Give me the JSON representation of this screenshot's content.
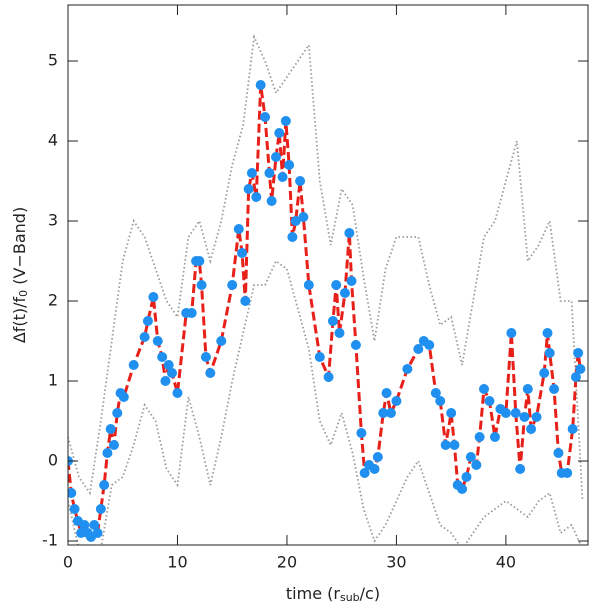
{
  "chart_data": {
    "type": "line",
    "xlabel": {
      "text": "time (r",
      "sub": "sub",
      "tail": "/c)"
    },
    "ylabel": {
      "text": "Δf(t)/f",
      "sub": "0",
      "tail": " (V−Band)"
    },
    "xlim": [
      0,
      47.5
    ],
    "ylim": [
      -1.05,
      5.7
    ],
    "xticks": [
      0,
      10,
      20,
      30,
      40
    ],
    "yticks": [
      -1,
      0,
      1,
      2,
      3,
      4,
      5
    ],
    "grey_x": [
      0,
      1,
      2,
      3,
      4,
      5,
      6,
      7,
      8,
      9,
      10,
      11,
      12,
      13,
      14,
      15,
      16,
      17,
      18,
      19,
      20,
      21,
      22,
      23,
      24,
      25,
      26,
      27,
      28,
      29,
      30,
      31,
      32,
      33,
      34,
      35,
      36,
      37,
      38,
      39,
      40,
      41,
      42,
      43,
      44,
      45,
      46,
      47
    ],
    "grey_color": "#999999",
    "grey_series": [
      [
        0.3,
        -0.2,
        -0.4,
        0.5,
        1.5,
        2.5,
        3.0,
        2.8,
        2.4,
        2.0,
        1.8,
        2.8,
        3.0,
        2.5,
        3.0,
        3.7,
        4.2,
        5.3,
        5.0,
        4.6,
        4.8,
        5.0,
        5.2,
        3.5,
        2.7,
        3.4,
        3.2,
        2.3,
        1.5,
        2.4,
        2.8,
        2.8,
        2.8,
        2.2,
        1.7,
        1.8,
        1.2,
        2.0,
        2.8,
        3.0,
        3.5,
        4.0,
        2.5,
        2.7,
        3.0,
        2.0,
        2.0,
        -0.5
      ],
      [
        -0.5,
        -1.1,
        -1.1,
        -1.1,
        -0.3,
        -0.2,
        0.2,
        0.7,
        0.5,
        -0.1,
        -0.3,
        0.8,
        0.3,
        -0.3,
        0.3,
        1.0,
        1.6,
        2.2,
        2.2,
        2.5,
        2.4,
        1.9,
        1.4,
        0.5,
        0.2,
        0.6,
        0.1,
        -0.6,
        -1.0,
        -0.8,
        -0.5,
        -0.2,
        0.0,
        -0.4,
        -0.8,
        -0.9,
        -1.1,
        -0.9,
        -0.7,
        -0.6,
        -0.5,
        -0.6,
        -0.7,
        -0.5,
        -0.4,
        -0.9,
        -0.8,
        -1.1
      ]
    ],
    "line_color": "#e8201a",
    "point_color": "#1f8ff0",
    "x": [
      0,
      0.3,
      0.6,
      0.9,
      1.2,
      1.5,
      1.8,
      2.1,
      2.4,
      2.7,
      3.0,
      3.3,
      3.6,
      3.9,
      4.2,
      4.5,
      4.8,
      5.1,
      6,
      7,
      7.3,
      7.8,
      8.2,
      8.6,
      8.9,
      9.2,
      9.5,
      10,
      10.8,
      11.3,
      11.7,
      12,
      12.2,
      12.6,
      13,
      14,
      15,
      15.6,
      15.9,
      16.2,
      16.5,
      16.8,
      17.2,
      17.6,
      18,
      18.4,
      18.6,
      19,
      19.3,
      19.6,
      19.9,
      20.2,
      20.5,
      20.8,
      21.2,
      21.5,
      22,
      23,
      23.8,
      24.2,
      24.5,
      24.8,
      25.3,
      25.7,
      25.9,
      26.3,
      26.8,
      27.1,
      27.5,
      28,
      28.3,
      28.8,
      29.1,
      29.5,
      30,
      31,
      32,
      32.5,
      33,
      33.6,
      34,
      34.5,
      35,
      35.3,
      35.6,
      36,
      36.4,
      36.8,
      37.3,
      37.6,
      38,
      38.5,
      39,
      39.5,
      40,
      40.5,
      40.9,
      41.3,
      41.7,
      42,
      42.3,
      42.8,
      43.5,
      43.8,
      44,
      44.4,
      44.8,
      45.1,
      45.6,
      46.1,
      46.4,
      46.6,
      46.8
    ],
    "values": [
      0,
      -0.4,
      -0.6,
      -0.75,
      -0.9,
      -0.8,
      -0.9,
      -0.95,
      -0.8,
      -0.9,
      -0.6,
      -0.3,
      0.1,
      0.4,
      0.2,
      0.6,
      0.85,
      0.8,
      1.2,
      1.55,
      1.75,
      2.05,
      1.5,
      1.3,
      1.0,
      1.2,
      1.1,
      0.85,
      1.85,
      1.85,
      2.5,
      2.5,
      2.2,
      1.3,
      1.1,
      1.5,
      2.2,
      2.9,
      2.6,
      2.0,
      3.4,
      3.6,
      3.3,
      4.7,
      4.3,
      3.6,
      3.25,
      3.8,
      4.1,
      3.55,
      4.25,
      3.7,
      2.8,
      3.0,
      3.5,
      3.05,
      2.2,
      1.3,
      1.05,
      1.75,
      2.2,
      1.6,
      2.1,
      2.85,
      2.25,
      1.45,
      0.35,
      -0.15,
      -0.05,
      -0.1,
      0.05,
      0.6,
      0.85,
      0.6,
      0.75,
      1.15,
      1.4,
      1.5,
      1.45,
      0.85,
      0.75,
      0.2,
      0.6,
      0.2,
      -0.3,
      -0.35,
      -0.2,
      0.05,
      -0.05,
      0.3,
      0.9,
      0.75,
      0.3,
      0.65,
      0.6,
      1.6,
      0.6,
      -0.1,
      0.55,
      0.9,
      0.4,
      0.55,
      1.1,
      1.6,
      1.35,
      0.9,
      0.1,
      -0.15,
      -0.15,
      0.4,
      1.05,
      1.35,
      1.15
    ]
  }
}
